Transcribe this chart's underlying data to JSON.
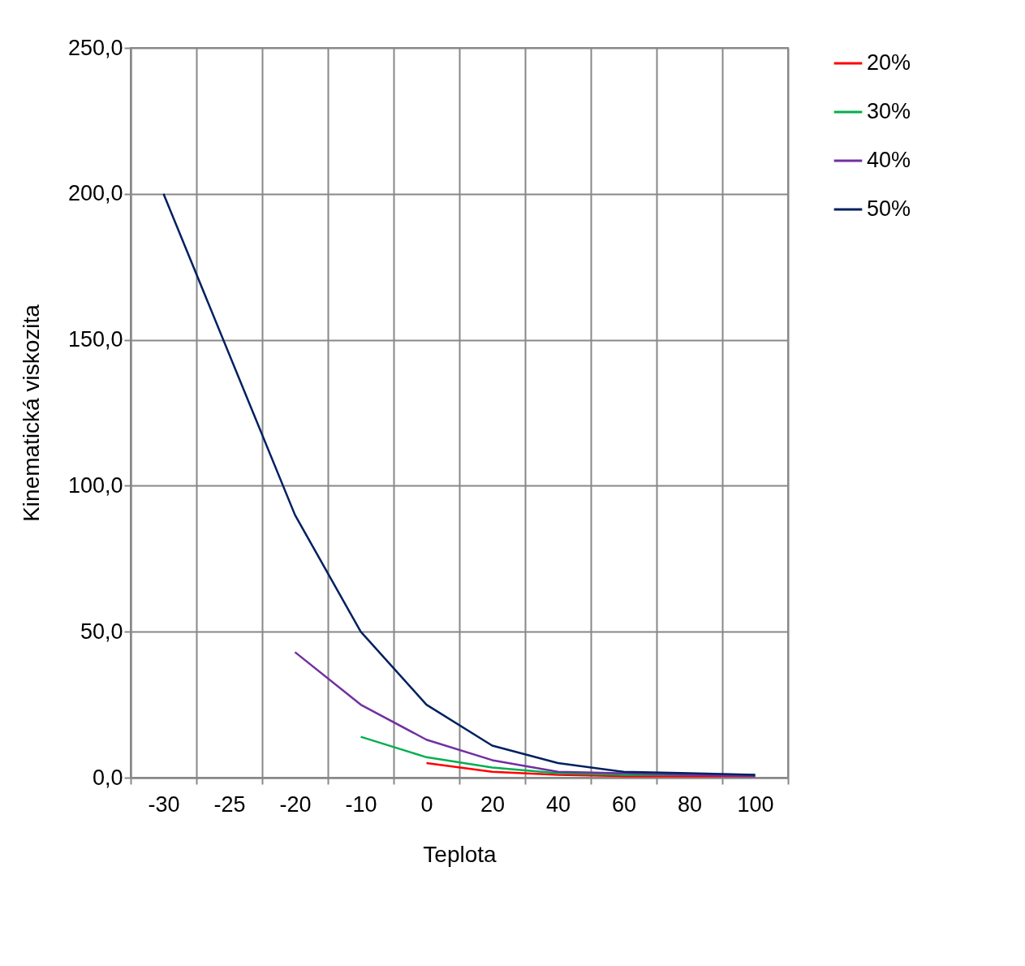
{
  "chart_data": {
    "type": "line",
    "xlabel": "Teplota",
    "ylabel": "Kinematická viskozita",
    "categories": [
      "-30",
      "-25",
      "-20",
      "-10",
      "0",
      "20",
      "40",
      "60",
      "80",
      "100"
    ],
    "series": [
      {
        "name": "20%",
        "color": "#ff0000",
        "values": [
          null,
          null,
          null,
          null,
          5,
          2,
          1,
          0.5,
          0.5,
          0.5
        ]
      },
      {
        "name": "30%",
        "color": "#00b050",
        "values": [
          null,
          null,
          null,
          14,
          7,
          3.5,
          1.5,
          1,
          1,
          1
        ]
      },
      {
        "name": "40%",
        "color": "#7030a0",
        "values": [
          null,
          null,
          43,
          25,
          13,
          6,
          2,
          1.5,
          1,
          0.5
        ]
      },
      {
        "name": "50%",
        "color": "#002060",
        "values": [
          200,
          null,
          90,
          50,
          25,
          11,
          5,
          2,
          1.5,
          1
        ]
      }
    ],
    "ylim": [
      0,
      250
    ],
    "yticks": [
      {
        "value": 0,
        "label": "0,0"
      },
      {
        "value": 50,
        "label": "50,0"
      },
      {
        "value": 100,
        "label": "100,0"
      },
      {
        "value": 150,
        "label": "150,0"
      },
      {
        "value": 200,
        "label": "200,0"
      },
      {
        "value": 250,
        "label": "250,0"
      }
    ],
    "grid": true,
    "legend": "right",
    "marker": "none",
    "line_style": "solid"
  }
}
